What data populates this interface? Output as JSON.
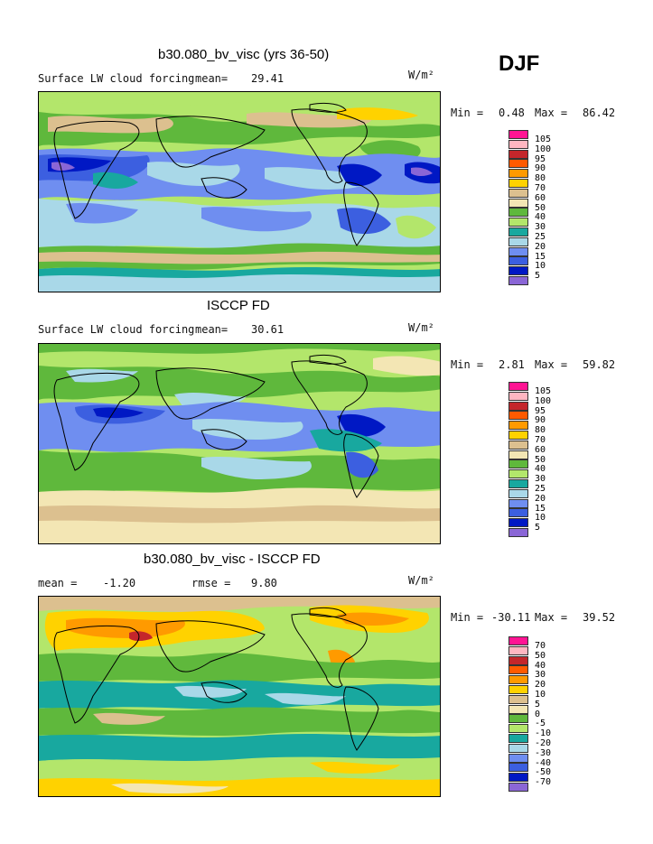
{
  "season": "DJF",
  "units": "W/m²",
  "palette_colors": {
    "deep_violet": "#8a66d6",
    "navy": "#0018c4",
    "blue": "#3c5fe0",
    "mid_blue": "#6f8ef0",
    "light_blue": "#a9d8e8",
    "teal": "#18a89f",
    "green": "#5fb83c",
    "light_green": "#b3e66b",
    "cream": "#f3e6b4",
    "tan": "#dcc08f",
    "yellow": "#ffd200",
    "orange": "#ff9a00",
    "dark_orange": "#ff5a00",
    "red": "#c4262b",
    "pink": "#ffb6c1",
    "magenta": "#ff1493"
  },
  "panels": [
    {
      "title": "b30.080_bv_visc (yrs 36-50)",
      "left_text": "Surface LW cloud forcing",
      "mean_label": "mean=",
      "mean_value": "29.41",
      "min_label": "Min =",
      "min_value": "0.48",
      "max_label": "Max =",
      "max_value": "86.42",
      "legend": [
        "105",
        "100",
        "95",
        "90",
        "80",
        "70",
        "60",
        "50",
        "40",
        "30",
        "25",
        "20",
        "15",
        "10",
        "5"
      ]
    },
    {
      "title": "ISCCP FD",
      "left_text": "Surface LW cloud forcing",
      "mean_label": "mean=",
      "mean_value": "30.61",
      "min_label": "Min =",
      "min_value": "2.81",
      "max_label": "Max =",
      "max_value": "59.82",
      "legend": [
        "105",
        "100",
        "95",
        "90",
        "80",
        "70",
        "60",
        "50",
        "40",
        "30",
        "25",
        "20",
        "15",
        "10",
        "5"
      ]
    },
    {
      "title": "b30.080_bv_visc - ISCCP FD",
      "left_text": "mean =",
      "mean_label": "",
      "mean_value": "-1.20",
      "rmse_label": "rmse =",
      "rmse_value": "9.80",
      "min_label": "Min =",
      "min_value": "-30.11",
      "max_label": "Max =",
      "max_value": "39.52",
      "legend": [
        "70",
        "50",
        "40",
        "30",
        "20",
        "10",
        "5",
        "0",
        "-5",
        "-10",
        "-20",
        "-30",
        "-40",
        "-50",
        "-70"
      ]
    }
  ]
}
